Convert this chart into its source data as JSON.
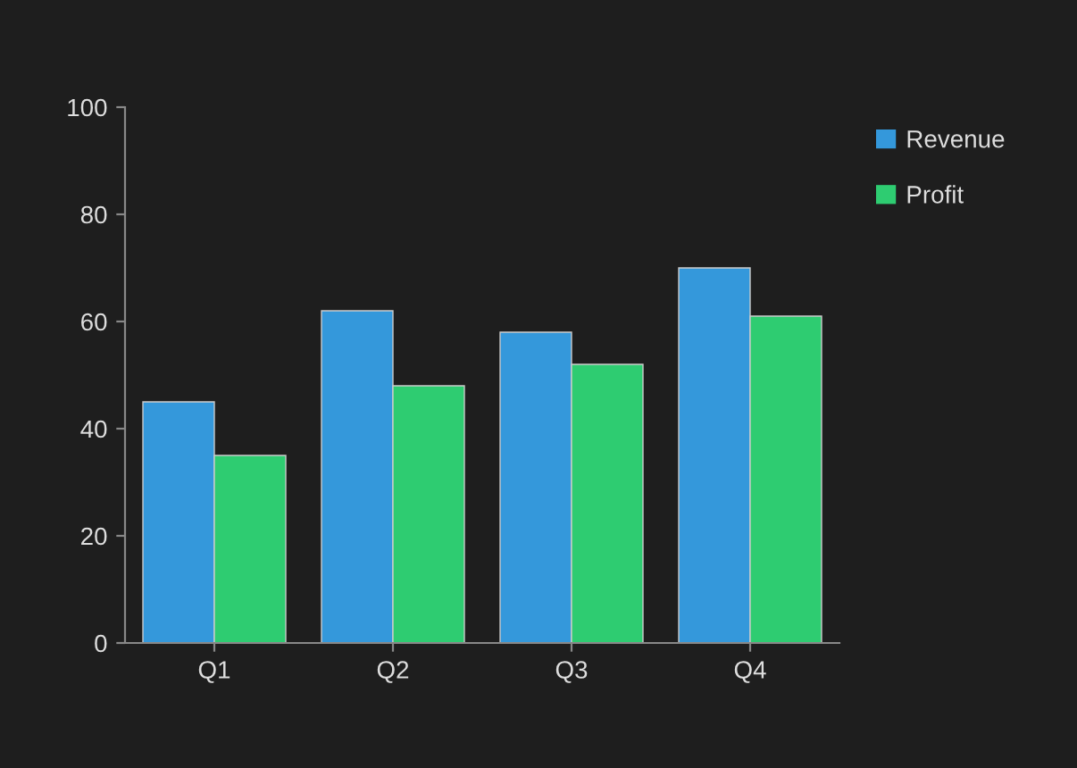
{
  "chart_data": {
    "type": "bar",
    "categories": [
      "Q1",
      "Q2",
      "Q3",
      "Q4"
    ],
    "series": [
      {
        "name": "Revenue",
        "color": "#3498db",
        "values": [
          45,
          62,
          58,
          70
        ]
      },
      {
        "name": "Profit",
        "color": "#2ecc71",
        "values": [
          35,
          48,
          52,
          61
        ]
      }
    ],
    "ylim": [
      0,
      100
    ],
    "yticks": [
      0,
      20,
      40,
      60,
      80,
      100
    ],
    "grid": false,
    "legend": "top right"
  }
}
